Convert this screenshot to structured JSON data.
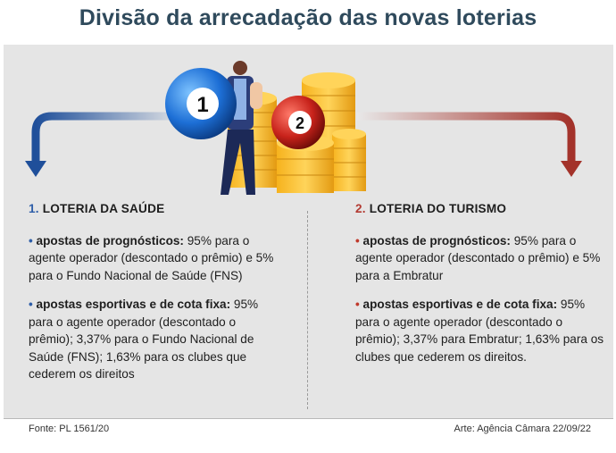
{
  "title": "Divisão da arrecadação das novas loterias",
  "illustration": {
    "ball_left": "1",
    "ball_right": "2"
  },
  "left": {
    "num": "1.",
    "heading": "LOTERIA DA SAÚDE",
    "items": [
      {
        "bullet": "•",
        "lead": "apostas de prognósticos:",
        "text": " 95% para o agente operador (descontado o prêmio) e 5% para o Fundo Nacional de Saúde (FNS)"
      },
      {
        "bullet": "•",
        "lead": "apostas esportivas e de cota fixa:",
        "text": " 95% para o agente operador (descontado o prêmio); 3,37% para o Fundo Nacional de Saúde (FNS); 1,63% para os clubes que cederem os direitos"
      }
    ]
  },
  "right": {
    "num": "2.",
    "heading": "LOTERIA DO TURISMO",
    "items": [
      {
        "bullet": "•",
        "lead": "apostas de prognósticos:",
        "text": " 95% para o agente operador (descontado o prêmio) e 5% para a Embratur"
      },
      {
        "bullet": "•",
        "lead": "apostas esportivas e de cota fixa:",
        "text": " 95% para o agente operador (descontado o prêmio); 3,37% para Embratur; 1,63% para os clubes que cederem os direitos."
      }
    ]
  },
  "footer": {
    "source": "Fonte: PL 1561/20",
    "credit": "Arte: Agência Câmara 22/09/22"
  },
  "colors": {
    "blue": "#2e5ea8",
    "red": "#b33a32",
    "title": "#2f4a5c",
    "panel": "#e5e5e5",
    "gold": "#f2b322"
  }
}
